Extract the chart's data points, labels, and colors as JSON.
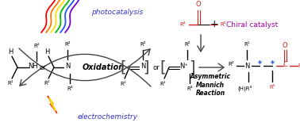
{
  "bg_color": "#ffffff",
  "photocatalysis_text": "photocatalysis",
  "photocatalysis_color": "#3333cc",
  "electrochemistry_text": "electrochemistry",
  "electrochemistry_color": "#3333cc",
  "chiral_catalyst_text": "Chiral catalyst",
  "chiral_catalyst_color": "#aa00aa",
  "asymmetric_text": "Asymmetric\nMannich\nReaction",
  "arrow_color": "#444444",
  "red_color": "#cc2222",
  "blue_color": "#2244cc",
  "bracket_color": "#444444",
  "wave_colors": [
    "#ff0000",
    "#ff7700",
    "#ffdd00",
    "#00bb00",
    "#2255ff",
    "#7700cc"
  ],
  "fig_width": 3.78,
  "fig_height": 1.69,
  "dpi": 100
}
